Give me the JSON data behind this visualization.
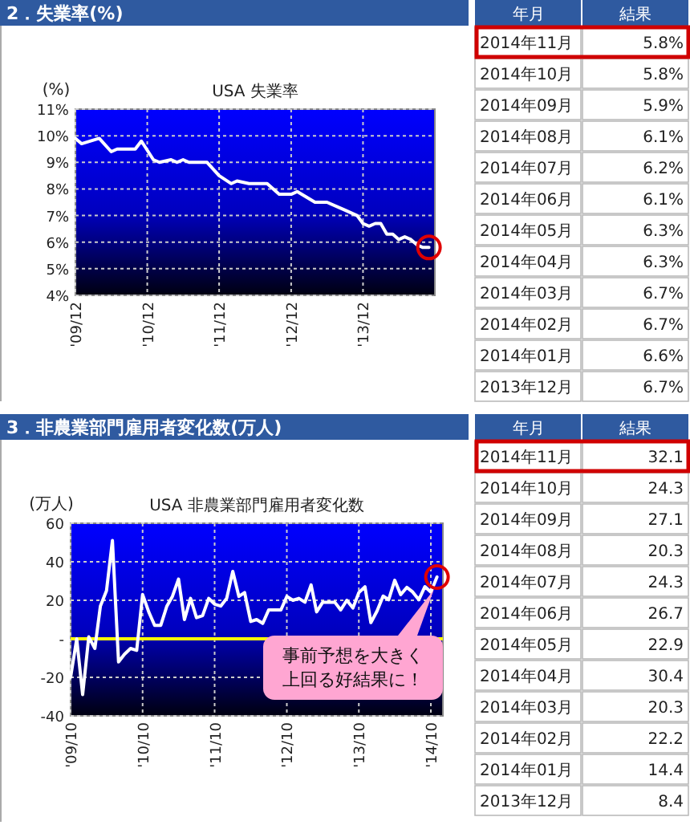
{
  "chart_data": [
    {
      "type": "line",
      "title": "2．失業率(%)",
      "subtitle": "USA 失業率",
      "ylabel": "(%)",
      "x": [
        "2009-12",
        "2010-01",
        "2010-04",
        "2010-06",
        "2010-07",
        "2010-10",
        "2010-11",
        "2011-01",
        "2011-02",
        "2011-04",
        "2011-05",
        "2011-06",
        "2011-07",
        "2011-10",
        "2011-12",
        "2012-02",
        "2012-03",
        "2012-05",
        "2012-08",
        "2012-10",
        "2012-12",
        "2013-01",
        "2013-04",
        "2013-06",
        "2013-09",
        "2013-11",
        "2013-12",
        "2014-01",
        "2014-02",
        "2014-03",
        "2014-04",
        "2014-05",
        "2014-06",
        "2014-07",
        "2014-08",
        "2014-09",
        "2014-10",
        "2014-11"
      ],
      "series": [
        {
          "color": "#ffffff",
          "values": [
            9.9,
            9.7,
            9.9,
            9.4,
            9.5,
            9.5,
            9.8,
            9.1,
            9.0,
            9.1,
            9.0,
            9.1,
            9.0,
            9.0,
            8.5,
            8.2,
            8.3,
            8.2,
            8.2,
            7.8,
            7.8,
            7.9,
            7.5,
            7.5,
            7.2,
            7.0,
            6.7,
            6.6,
            6.7,
            6.7,
            6.3,
            6.3,
            6.1,
            6.2,
            6.1,
            5.9,
            5.8,
            5.8
          ]
        }
      ],
      "xlim": [
        "2009-12",
        "2014-12"
      ],
      "xticks": [
        {
          "value": "2009-12",
          "label": "'09/12"
        },
        {
          "value": "2010-12",
          "label": "'10/12"
        },
        {
          "value": "2011-12",
          "label": "'11/12"
        },
        {
          "value": "2012-12",
          "label": "'12/12"
        },
        {
          "value": "2013-12",
          "label": "'13/12"
        }
      ],
      "ylim": [
        4,
        11
      ],
      "yticks": [
        {
          "value": 4,
          "label": "4%"
        },
        {
          "value": 5,
          "label": "5%"
        },
        {
          "value": 6,
          "label": "6%"
        },
        {
          "value": 7,
          "label": "7%"
        },
        {
          "value": 8,
          "label": "8%"
        },
        {
          "value": 9,
          "label": "9%"
        },
        {
          "value": 10,
          "label": "10%"
        },
        {
          "value": 11,
          "label": "11%"
        }
      ],
      "grid": true,
      "marker": "none"
    },
    {
      "type": "other",
      "xlabel": "年月",
      "ylabel": "結果",
      "categories": [
        "2014年11月",
        "2014年10月",
        "2014年09月",
        "2014年08月",
        "2014年07月",
        "2014年06月",
        "2014年05月",
        "2014年04月",
        "2014年03月",
        "2014年02月",
        "2014年01月",
        "2013年12月"
      ],
      "value_labels": [
        "5.8%",
        "5.8%",
        "5.9%",
        "6.1%",
        "6.2%",
        "6.1%",
        "6.3%",
        "6.3%",
        "6.7%",
        "6.7%",
        "6.6%",
        "6.7%"
      ]
    },
    {
      "type": "line",
      "title": "3．非農業部門雇用者変化数(万人)",
      "subtitle": "USA 非農業部門雇用者変化数",
      "ylabel": "(万人)",
      "x": [
        "2009-10",
        "2009-11",
        "2009-12",
        "2010-01",
        "2010-02",
        "2010-03",
        "2010-04",
        "2010-05",
        "2010-06",
        "2010-07",
        "2010-08",
        "2010-09",
        "2010-10",
        "2010-11",
        "2010-12",
        "2011-01",
        "2011-02",
        "2011-03",
        "2011-04",
        "2011-05",
        "2011-06",
        "2011-07",
        "2011-08",
        "2011-09",
        "2011-10",
        "2011-11",
        "2011-12",
        "2012-01",
        "2012-02",
        "2012-03",
        "2012-04",
        "2012-05",
        "2012-06",
        "2012-07",
        "2012-08",
        "2012-09",
        "2012-10",
        "2012-11",
        "2012-12",
        "2013-01",
        "2013-02",
        "2013-03",
        "2013-04",
        "2013-05",
        "2013-06",
        "2013-07",
        "2013-08",
        "2013-09",
        "2013-10",
        "2013-11",
        "2013-12",
        "2014-01",
        "2014-02",
        "2014-03",
        "2014-04",
        "2014-05",
        "2014-06",
        "2014-07",
        "2014-08",
        "2014-09",
        "2014-10",
        "2014-11"
      ],
      "series": [
        {
          "color": "#ffffff",
          "values": [
            -20,
            0,
            -29,
            1,
            -5,
            17,
            25,
            51,
            -12,
            -8,
            -5,
            -6,
            23,
            14,
            7,
            7,
            17,
            22,
            31,
            10,
            21,
            11,
            12,
            21,
            18,
            17,
            21,
            35,
            22,
            24,
            9,
            10,
            8,
            15,
            15,
            15,
            22,
            20,
            21,
            19,
            28,
            14,
            19,
            19,
            19,
            15,
            20,
            16,
            24,
            27,
            8.4,
            14.4,
            22.2,
            20.3,
            30.4,
            22.9,
            26.7,
            24.3,
            20.3,
            27.1,
            24.3,
            32.1
          ]
        }
      ],
      "xlim": [
        "2009-10",
        "2014-12"
      ],
      "xticks": [
        {
          "value": "2009-10",
          "label": "'09/10"
        },
        {
          "value": "2010-10",
          "label": "'10/10"
        },
        {
          "value": "2011-10",
          "label": "'11/10"
        },
        {
          "value": "2012-10",
          "label": "'12/10"
        },
        {
          "value": "2013-10",
          "label": "'13/10"
        },
        {
          "value": "2014-10",
          "label": "'14/10"
        }
      ],
      "ylim": [
        -40,
        60
      ],
      "yticks": [
        -40,
        -20,
        {
          "value": 0,
          "label": "-"
        },
        20,
        40,
        60
      ],
      "ref_lines": [
        {
          "axis": "y",
          "value": 0,
          "color": "#ffff00"
        }
      ],
      "annotations": [
        "事前予想を大きく上回る好結果に！"
      ],
      "grid": true,
      "marker": "none"
    },
    {
      "type": "other",
      "xlabel": "年月",
      "ylabel": "結果",
      "categories": [
        "2014年11月",
        "2014年10月",
        "2014年09月",
        "2014年08月",
        "2014年07月",
        "2014年06月",
        "2014年05月",
        "2014年04月",
        "2014年03月",
        "2014年02月",
        "2014年01月",
        "2013年12月"
      ],
      "value_labels": [
        "32.1",
        "24.3",
        "27.1",
        "20.3",
        "24.3",
        "26.7",
        "22.9",
        "30.4",
        "20.3",
        "22.2",
        "14.4",
        "8.4"
      ]
    }
  ]
}
